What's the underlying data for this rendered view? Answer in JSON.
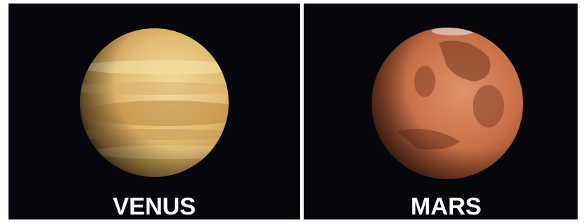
{
  "panels": [
    {
      "label": "VENUS"
    },
    {
      "label": "MARS"
    }
  ]
}
